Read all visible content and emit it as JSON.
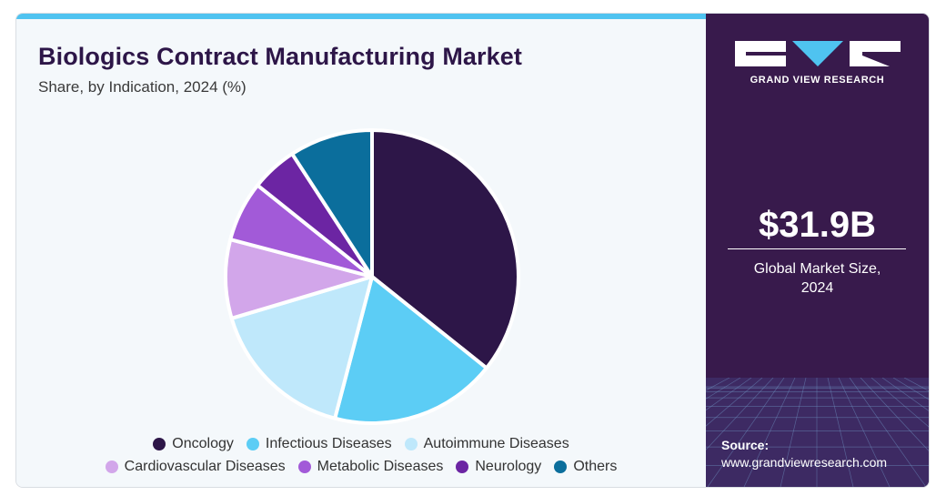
{
  "chart_data": {
    "type": "pie",
    "title": "Biologics Contract Manufacturing Market",
    "subtitle": "Share, by Indication, 2024 (%)",
    "categories": [
      "Oncology",
      "Infectious Diseases",
      "Autoimmune Diseases",
      "Cardiovascular Diseases",
      "Metabolic Diseases",
      "Neurology",
      "Others"
    ],
    "values": [
      35,
      18,
      16,
      8.5,
      6.5,
      5,
      9
    ],
    "colors": [
      "#2d1648",
      "#5ccdf5",
      "#bfe8fb",
      "#d2a6ea",
      "#a25ad8",
      "#6c25a3",
      "#0b6e9c"
    ],
    "legend_position": "bottom",
    "start_angle_deg": 0,
    "direction": "clockwise"
  },
  "brand": {
    "name": "GRAND VIEW RESEARCH",
    "accent_color": "#4fc3f0",
    "panel_color": "#381a4c"
  },
  "market": {
    "value": "$31.9B",
    "label_line1": "Global Market Size,",
    "label_line2": "2024"
  },
  "source": {
    "label": "Source:",
    "url": "www.grandviewresearch.com"
  }
}
